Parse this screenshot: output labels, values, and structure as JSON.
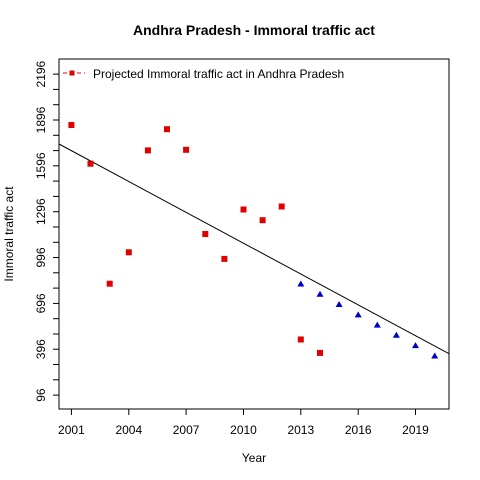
{
  "chart_data": {
    "type": "scatter",
    "title": "Andhra Pradesh  -  Immoral traffic act",
    "xlabel": "Year",
    "ylabel": "Immoral traffic act",
    "xlim": [
      2000.35,
      2020.75
    ],
    "ylim": [
      5,
      2295
    ],
    "x_ticks": [
      2001,
      2004,
      2007,
      2010,
      2013,
      2016,
      2019
    ],
    "y_ticks": [
      96,
      196,
      296,
      396,
      496,
      596,
      696,
      796,
      896,
      996,
      1096,
      1196,
      1296,
      1396,
      1496,
      1596,
      1696,
      1796,
      1896,
      1996,
      2096,
      2196
    ],
    "y_tick_labels_shown": [
      96,
      396,
      696,
      996,
      1296,
      1596,
      1896,
      2196
    ],
    "grid": false,
    "legend": {
      "position": "top-left",
      "entries": [
        "Projected  Immoral traffic act  in  Andhra Pradesh"
      ]
    },
    "series": [
      {
        "name": "Projected  Immoral traffic act  in  Andhra Pradesh",
        "kind": "points",
        "marker": "square",
        "color": "#e00000",
        "x": [
          2001,
          2002,
          2003,
          2004,
          2005,
          2006,
          2007,
          2008,
          2009,
          2010,
          2011,
          2012,
          2013,
          2014
        ],
        "y": [
          1863,
          1610,
          825,
          1030,
          1697,
          1836,
          1701,
          1150,
          987,
          1310,
          1240,
          1330,
          460,
          372
        ]
      },
      {
        "kind": "projection",
        "marker": "triangle",
        "color": "#0000cc",
        "x": [
          2013,
          2014,
          2015,
          2016,
          2017,
          2018,
          2019,
          2020
        ],
        "y": [
          823,
          756,
          689,
          621,
          554,
          487,
          420,
          352
        ]
      },
      {
        "kind": "trend-line",
        "color": "#000000",
        "x": [
          2000.35,
          2020.75
        ],
        "y": [
          1739,
          367
        ]
      }
    ]
  }
}
